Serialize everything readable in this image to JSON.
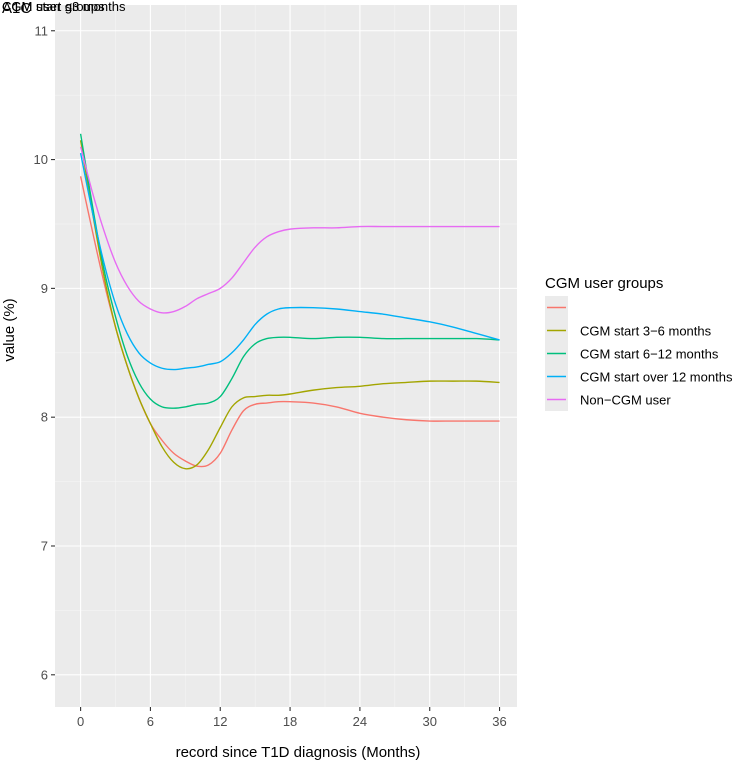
{
  "chart_data": {
    "type": "line",
    "title": "",
    "corner_texts": [
      "CGM start ≤3 months",
      "A1C",
      "CGM user groups"
    ],
    "xlabel": "record since T1D diagnosis (Months)",
    "ylabel": "value (%)",
    "xlim": [
      -2.2,
      37.5
    ],
    "ylim": [
      5.75,
      11.2
    ],
    "xticks": [
      0,
      6,
      12,
      18,
      24,
      30,
      36
    ],
    "yticks": [
      6,
      7,
      8,
      9,
      10,
      11
    ],
    "legend": {
      "title": "CGM user groups",
      "position": "right",
      "entries": [
        "",
        "CGM start 3−6 months",
        "CGM start 6−12 months",
        "CGM start over 12 months",
        "Non−CGM user"
      ]
    },
    "series": [
      {
        "name": "CGM start ≤3 months",
        "color": "#F8766D",
        "x": [
          0,
          1,
          2,
          3,
          4,
          5,
          6,
          7,
          8,
          9,
          10,
          11,
          12,
          13,
          14,
          15,
          16,
          17,
          18,
          20,
          22,
          24,
          26,
          28,
          30,
          32,
          34,
          36
        ],
        "y": [
          9.87,
          9.45,
          9.05,
          8.7,
          8.4,
          8.15,
          7.95,
          7.82,
          7.72,
          7.66,
          7.62,
          7.63,
          7.72,
          7.9,
          8.05,
          8.1,
          8.11,
          8.12,
          8.12,
          8.11,
          8.08,
          8.03,
          8.0,
          7.98,
          7.97,
          7.97,
          7.97,
          7.97
        ]
      },
      {
        "name": "CGM start 3−6 months",
        "color": "#A3A500",
        "x": [
          0,
          1,
          2,
          3,
          4,
          5,
          6,
          7,
          8,
          9,
          10,
          11,
          12,
          13,
          14,
          15,
          16,
          17,
          18,
          20,
          22,
          24,
          26,
          28,
          30,
          32,
          34,
          36
        ],
        "y": [
          10.15,
          9.6,
          9.1,
          8.7,
          8.4,
          8.15,
          7.95,
          7.77,
          7.65,
          7.6,
          7.63,
          7.75,
          7.92,
          8.08,
          8.15,
          8.16,
          8.17,
          8.17,
          8.18,
          8.21,
          8.23,
          8.24,
          8.26,
          8.27,
          8.28,
          8.28,
          8.28,
          8.27
        ]
      },
      {
        "name": "CGM start 6−12 months",
        "color": "#00BF7D",
        "x": [
          0,
          1,
          2,
          3,
          4,
          5,
          6,
          7,
          8,
          9,
          10,
          11,
          12,
          13,
          14,
          15,
          16,
          17,
          18,
          20,
          22,
          24,
          26,
          28,
          30,
          32,
          34,
          36
        ],
        "y": [
          10.2,
          9.65,
          9.15,
          8.78,
          8.48,
          8.27,
          8.14,
          8.08,
          8.07,
          8.08,
          8.1,
          8.11,
          8.16,
          8.3,
          8.47,
          8.57,
          8.61,
          8.62,
          8.62,
          8.61,
          8.62,
          8.62,
          8.61,
          8.61,
          8.61,
          8.61,
          8.61,
          8.6
        ]
      },
      {
        "name": "CGM start over 12 months",
        "color": "#00B0F6",
        "x": [
          0,
          1,
          2,
          3,
          4,
          5,
          6,
          7,
          8,
          9,
          10,
          11,
          12,
          13,
          14,
          15,
          16,
          17,
          18,
          20,
          22,
          24,
          26,
          28,
          30,
          32,
          34,
          36
        ],
        "y": [
          10.05,
          9.6,
          9.2,
          8.88,
          8.65,
          8.5,
          8.42,
          8.38,
          8.37,
          8.38,
          8.39,
          8.41,
          8.43,
          8.5,
          8.6,
          8.72,
          8.8,
          8.84,
          8.85,
          8.85,
          8.84,
          8.82,
          8.8,
          8.77,
          8.74,
          8.7,
          8.65,
          8.6
        ]
      },
      {
        "name": "Non−CGM user",
        "color": "#E76BF3",
        "x": [
          0,
          1,
          2,
          3,
          4,
          5,
          6,
          7,
          8,
          9,
          10,
          11,
          12,
          13,
          14,
          15,
          16,
          17,
          18,
          20,
          22,
          24,
          26,
          28,
          30,
          32,
          34,
          36
        ],
        "y": [
          10.1,
          9.75,
          9.45,
          9.2,
          9.02,
          8.9,
          8.84,
          8.81,
          8.82,
          8.86,
          8.92,
          8.96,
          9.0,
          9.08,
          9.2,
          9.32,
          9.4,
          9.44,
          9.46,
          9.47,
          9.47,
          9.48,
          9.48,
          9.48,
          9.48,
          9.48,
          9.48,
          9.48
        ]
      }
    ]
  }
}
